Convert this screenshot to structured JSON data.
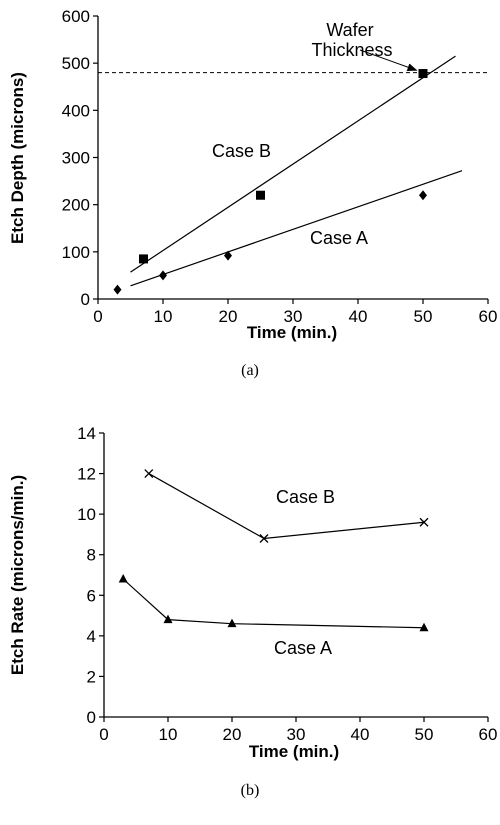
{
  "chart_data": [
    {
      "type": "scatter",
      "caption": "(a)",
      "xlabel": "Time (min.)",
      "ylabel": "Etch Depth (microns)",
      "xlim": [
        0,
        60
      ],
      "ylim": [
        0,
        600
      ],
      "xticks": [
        0,
        10,
        20,
        30,
        40,
        50,
        60
      ],
      "yticks": [
        0,
        100,
        200,
        300,
        400,
        500,
        600
      ],
      "grid": false,
      "reference_line": {
        "y": 480,
        "style": "dashed"
      },
      "annotations": [
        {
          "lines": [
            "Wafer",
            "Thickness"
          ],
          "arrow_to": {
            "x": 49,
            "y": 485
          }
        },
        {
          "text": "Case B"
        },
        {
          "text": "Case A"
        }
      ],
      "series": [
        {
          "marker": "square",
          "points": [
            {
              "x": 7,
              "y": 85
            },
            {
              "x": 25,
              "y": 220
            },
            {
              "x": 50,
              "y": 478
            }
          ],
          "fit_line": [
            {
              "x": 5,
              "y": 57
            },
            {
              "x": 55,
              "y": 515
            }
          ]
        },
        {
          "marker": "diamond",
          "points": [
            {
              "x": 3,
              "y": 20
            },
            {
              "x": 10,
              "y": 50
            },
            {
              "x": 20,
              "y": 92
            },
            {
              "x": 50,
              "y": 220
            }
          ],
          "fit_line": [
            {
              "x": 5,
              "y": 28
            },
            {
              "x": 56,
              "y": 272
            }
          ]
        }
      ]
    },
    {
      "type": "line",
      "caption": "(b)",
      "xlabel": "Time (min.)",
      "ylabel": "Etch Rate (microns/min.)",
      "xlim": [
        0,
        60
      ],
      "ylim": [
        0,
        14
      ],
      "xticks": [
        0,
        10,
        20,
        30,
        40,
        50,
        60
      ],
      "yticks": [
        0,
        2,
        4,
        6,
        8,
        10,
        12,
        14
      ],
      "grid": false,
      "annotations": [
        {
          "text": "Case B"
        },
        {
          "text": "Case A"
        }
      ],
      "series": [
        {
          "marker": "x",
          "points": [
            {
              "x": 7,
              "y": 12.0
            },
            {
              "x": 25,
              "y": 8.8
            },
            {
              "x": 50,
              "y": 9.6
            }
          ]
        },
        {
          "marker": "triangle",
          "points": [
            {
              "x": 3,
              "y": 6.8
            },
            {
              "x": 10,
              "y": 4.8
            },
            {
              "x": 20,
              "y": 4.6
            },
            {
              "x": 50,
              "y": 4.4
            }
          ]
        }
      ]
    }
  ]
}
